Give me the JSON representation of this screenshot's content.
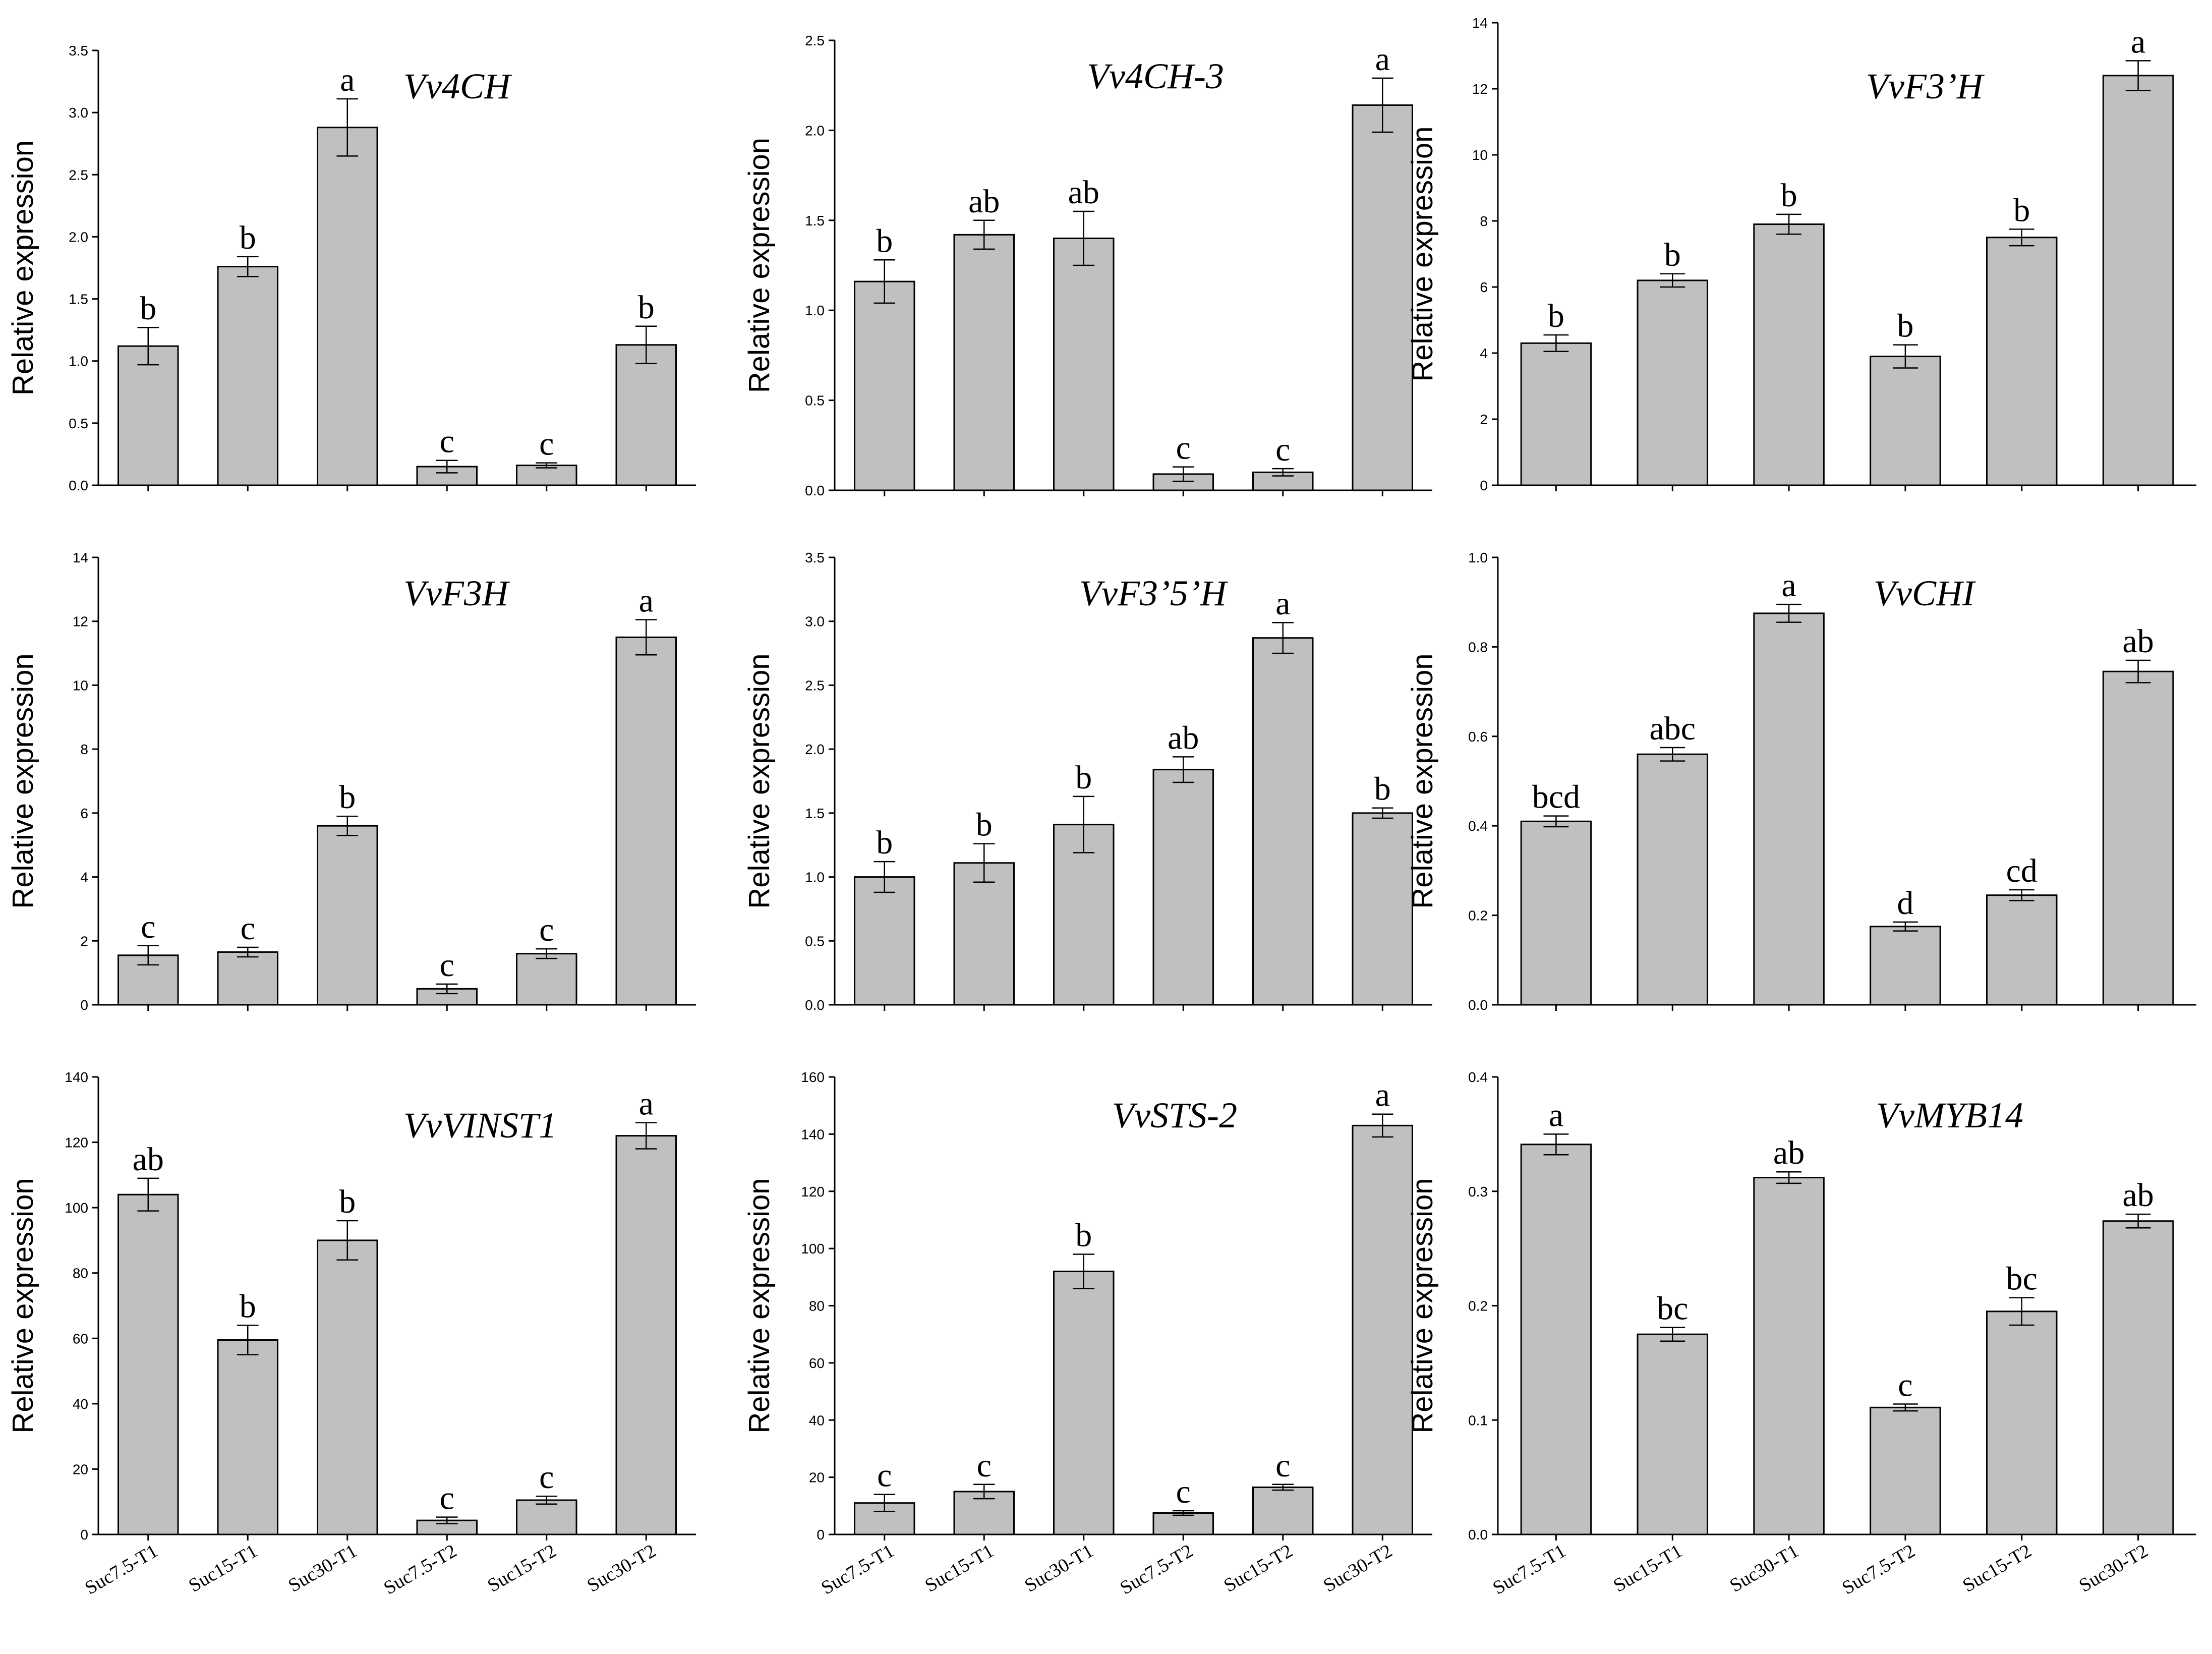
{
  "figure": {
    "categories": [
      "Suc7.5-T1",
      "Suc15-T1",
      "Suc30-T1",
      "Suc7.5-T2",
      "Suc15-T2",
      "Suc30-T2"
    ],
    "colors": {
      "bar_fill": "#c0c0c0",
      "stroke": "#000000"
    }
  },
  "chart_data": [
    {
      "type": "bar",
      "title": "Vv4CH",
      "ylabel": "Relative expression",
      "ylim": [
        0,
        3.5
      ],
      "yticks": [
        "0.0",
        "0.5",
        "1.0",
        "1.5",
        "2.0",
        "2.5",
        "3.0",
        "3.5"
      ],
      "categories": [
        "Suc7.5-T1",
        "Suc15-T1",
        "Suc30-T1",
        "Suc7.5-T2",
        "Suc15-T2",
        "Suc30-T2"
      ],
      "values": [
        1.12,
        1.76,
        2.88,
        0.15,
        0.16,
        1.13
      ],
      "errors": [
        0.15,
        0.08,
        0.23,
        0.05,
        0.02,
        0.15
      ],
      "labels": [
        "b",
        "b",
        "a",
        "c",
        "c",
        "b"
      ]
    },
    {
      "type": "bar",
      "title": "Vv4CH-3",
      "ylabel": "Relative expression",
      "ylim": [
        0,
        2.5
      ],
      "yticks": [
        "0.0",
        "0.5",
        "1.0",
        "1.5",
        "2.0",
        "2.5"
      ],
      "categories": [
        "Suc7.5-T1",
        "Suc15-T1",
        "Suc30-T1",
        "Suc7.5-T2",
        "Suc15-T2",
        "Suc30-T2"
      ],
      "values": [
        1.16,
        1.42,
        1.4,
        0.09,
        0.1,
        2.14
      ],
      "errors": [
        0.12,
        0.08,
        0.15,
        0.04,
        0.02,
        0.15
      ],
      "labels": [
        "b",
        "ab",
        "ab",
        "c",
        "c",
        "a"
      ]
    },
    {
      "type": "bar",
      "title": "VvF3’H",
      "ylabel": "Relative expression",
      "ylim": [
        0,
        14
      ],
      "yticks": [
        "0",
        "2",
        "4",
        "6",
        "8",
        "10",
        "12",
        "14"
      ],
      "categories": [
        "Suc7.5-T1",
        "Suc15-T1",
        "Suc30-T1",
        "Suc7.5-T2",
        "Suc15-T2",
        "Suc30-T2"
      ],
      "values": [
        4.3,
        6.2,
        7.9,
        3.9,
        7.5,
        12.4
      ],
      "errors": [
        0.25,
        0.2,
        0.3,
        0.35,
        0.25,
        0.45
      ],
      "labels": [
        "b",
        "b",
        "b",
        "b",
        "b",
        "a"
      ]
    },
    {
      "type": "bar",
      "title": "VvF3H",
      "ylabel": "Relative expression",
      "ylim": [
        0,
        14
      ],
      "yticks": [
        "0",
        "2",
        "4",
        "6",
        "8",
        "10",
        "12",
        "14"
      ],
      "categories": [
        "Suc7.5-T1",
        "Suc15-T1",
        "Suc30-T1",
        "Suc7.5-T2",
        "Suc15-T2",
        "Suc30-T2"
      ],
      "values": [
        1.55,
        1.65,
        5.6,
        0.5,
        1.6,
        11.5
      ],
      "errors": [
        0.3,
        0.15,
        0.3,
        0.15,
        0.15,
        0.55
      ],
      "labels": [
        "c",
        "c",
        "b",
        "c",
        "c",
        "a"
      ]
    },
    {
      "type": "bar",
      "title": "VvF3’5’H",
      "ylabel": "Relative expression",
      "ylim": [
        0,
        3.5
      ],
      "yticks": [
        "0.0",
        "0.5",
        "1.0",
        "1.5",
        "2.0",
        "2.5",
        "3.0",
        "3.5"
      ],
      "categories": [
        "Suc7.5-T1",
        "Suc15-T1",
        "Suc30-T1",
        "Suc7.5-T2",
        "Suc15-T2",
        "Suc30-T2"
      ],
      "values": [
        1.0,
        1.11,
        1.41,
        1.84,
        2.87,
        1.5
      ],
      "errors": [
        0.12,
        0.15,
        0.22,
        0.1,
        0.12,
        0.04
      ],
      "labels": [
        "b",
        "b",
        "b",
        "ab",
        "a",
        "b"
      ]
    },
    {
      "type": "bar",
      "title": "VvCHI",
      "ylabel": "Relative expression",
      "ylim": [
        0,
        1.0
      ],
      "yticks": [
        "0.0",
        "0.2",
        "0.4",
        "0.6",
        "0.8",
        "1.0"
      ],
      "categories": [
        "Suc7.5-T1",
        "Suc15-T1",
        "Suc30-T1",
        "Suc7.5-T2",
        "Suc15-T2",
        "Suc30-T2"
      ],
      "values": [
        0.41,
        0.56,
        0.875,
        0.175,
        0.245,
        0.745
      ],
      "errors": [
        0.012,
        0.015,
        0.02,
        0.01,
        0.012,
        0.025
      ],
      "labels": [
        "bcd",
        "abc",
        "a",
        "d",
        "cd",
        "ab"
      ]
    },
    {
      "type": "bar",
      "title": "VvVINST1",
      "ylabel": "Relative expression",
      "ylim": [
        0,
        140
      ],
      "yticks": [
        "0",
        "20",
        "40",
        "60",
        "80",
        "100",
        "120",
        "140"
      ],
      "categories": [
        "Suc7.5-T1",
        "Suc15-T1",
        "Suc30-T1",
        "Suc7.5-T2",
        "Suc15-T2",
        "Suc30-T2"
      ],
      "values": [
        104,
        59.5,
        90,
        4.3,
        10.5,
        122
      ],
      "errors": [
        5,
        4.5,
        6,
        1,
        1.2,
        4
      ],
      "labels": [
        "ab",
        "b",
        "b",
        "c",
        "c",
        "a"
      ]
    },
    {
      "type": "bar",
      "title": "VvSTS-2",
      "ylabel": "Relative expression",
      "ylim": [
        0,
        160
      ],
      "yticks": [
        "0",
        "20",
        "40",
        "60",
        "80",
        "100",
        "120",
        "140",
        "160"
      ],
      "categories": [
        "Suc7.5-T1",
        "Suc15-T1",
        "Suc30-T1",
        "Suc7.5-T2",
        "Suc15-T2",
        "Suc30-T2"
      ],
      "values": [
        11,
        15,
        92,
        7.5,
        16.5,
        143
      ],
      "errors": [
        3,
        2.5,
        6,
        0.8,
        1,
        4
      ],
      "labels": [
        "c",
        "c",
        "b",
        "c",
        "c",
        "a"
      ]
    },
    {
      "type": "bar",
      "title": "VvMYB14",
      "ylabel": "Relative expression",
      "ylim": [
        0,
        0.4
      ],
      "yticks": [
        "0.0",
        "0.1",
        "0.2",
        "0.3",
        "0.4"
      ],
      "categories": [
        "Suc7.5-T1",
        "Suc15-T1",
        "Suc30-T1",
        "Suc7.5-T2",
        "Suc15-T2",
        "Suc30-T2"
      ],
      "values": [
        0.341,
        0.175,
        0.312,
        0.111,
        0.195,
        0.274
      ],
      "errors": [
        0.009,
        0.006,
        0.005,
        0.003,
        0.012,
        0.006
      ],
      "labels": [
        "a",
        "bc",
        "ab",
        "c",
        "bc",
        "ab"
      ]
    }
  ]
}
